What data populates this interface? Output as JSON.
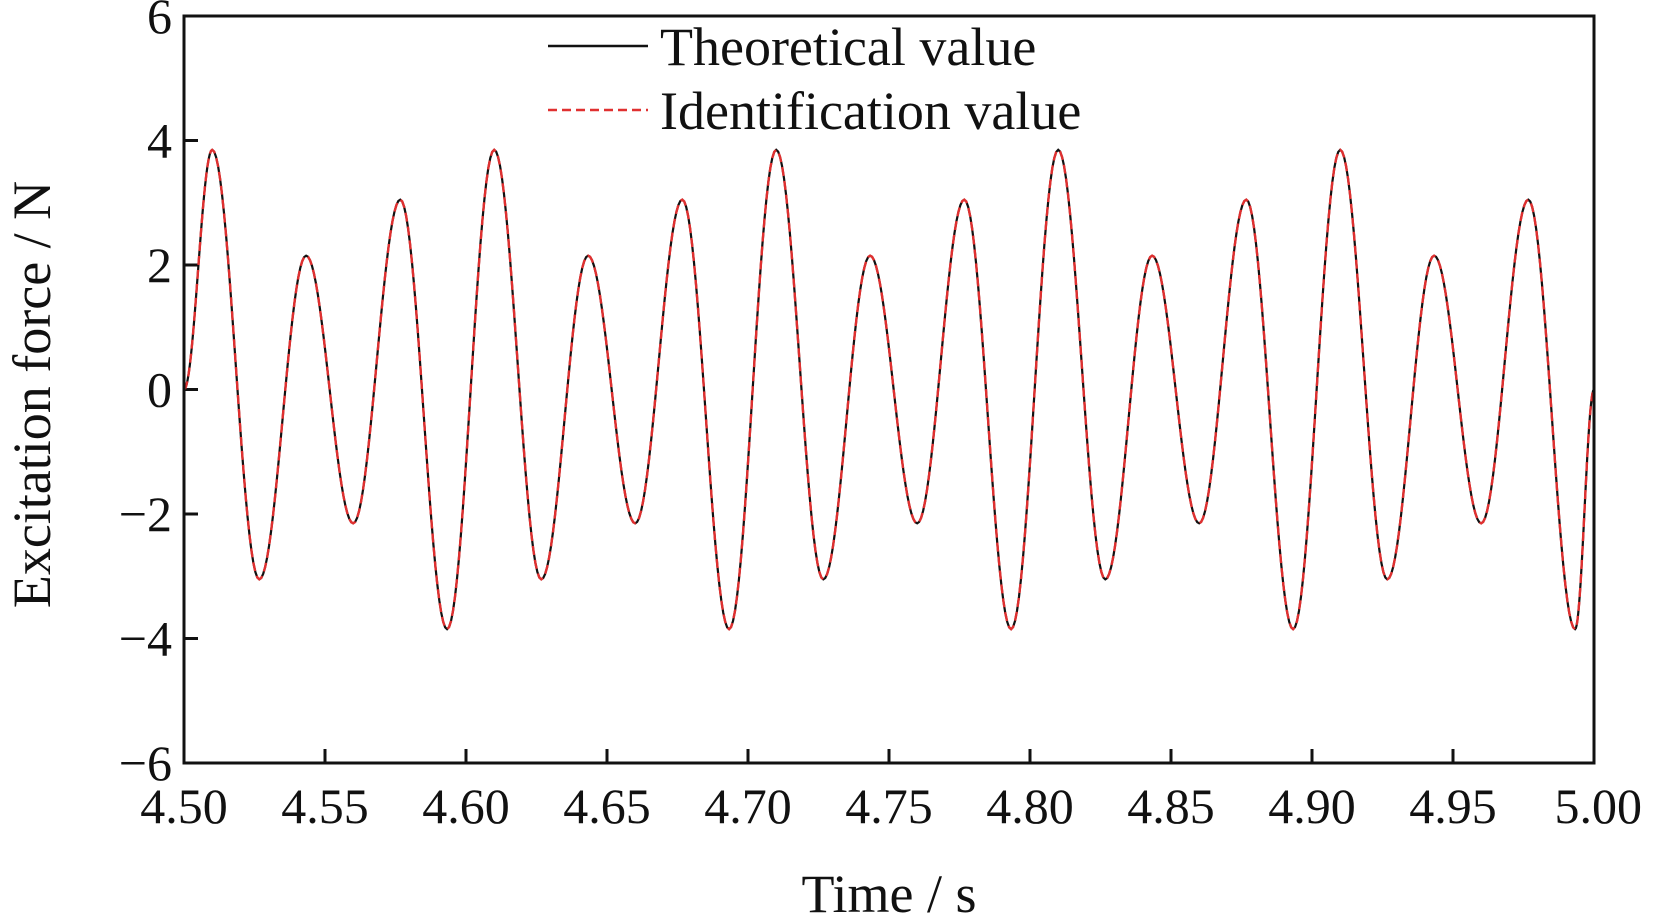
{
  "chart_data": {
    "type": "line",
    "xlabel": "Time / s",
    "ylabel": "Excitation force / N",
    "xlim": [
      4.5,
      5.0
    ],
    "ylim": [
      -6,
      6
    ],
    "x_ticks": [
      "4.50",
      "4.55",
      "4.60",
      "4.65",
      "4.70",
      "4.75",
      "4.80",
      "4.85",
      "4.90",
      "4.95",
      "5.00"
    ],
    "y_ticks": [
      "−6",
      "−4",
      "−2",
      "0",
      "2",
      "4",
      "6"
    ],
    "grid": false,
    "legend_position": "top-center",
    "series": [
      {
        "name": "Theoretical value",
        "color": "#111111",
        "style": "solid",
        "x": [
          4.5,
          4.51,
          4.5267,
          4.5433,
          4.56,
          4.5767,
          4.5933,
          4.61,
          4.6267,
          4.6433,
          4.66,
          4.6767,
          4.6933,
          4.71,
          4.7267,
          4.7433,
          4.76,
          4.7767,
          4.7933,
          4.81,
          4.8267,
          4.8433,
          4.86,
          4.8767,
          4.8933,
          4.91,
          4.9267,
          4.9433,
          4.96,
          4.9767,
          4.9933,
          5.0
        ],
        "y": [
          0,
          3.85,
          -3.05,
          2.15,
          -2.15,
          3.05,
          -3.85,
          3.85,
          -3.05,
          2.15,
          -2.15,
          3.05,
          -3.85,
          3.85,
          -3.05,
          2.15,
          -2.15,
          3.05,
          -3.85,
          3.85,
          -3.05,
          2.15,
          -2.15,
          3.05,
          -3.85,
          3.85,
          -3.05,
          2.15,
          -2.15,
          3.05,
          -3.85,
          0
        ]
      },
      {
        "name": "Identification value",
        "color": "#e03030",
        "style": "dashed",
        "x": [
          4.5,
          4.51,
          4.5267,
          4.5433,
          4.56,
          4.5767,
          4.5933,
          4.61,
          4.6267,
          4.6433,
          4.66,
          4.6767,
          4.6933,
          4.71,
          4.7267,
          4.7433,
          4.76,
          4.7767,
          4.7933,
          4.81,
          4.8267,
          4.8433,
          4.86,
          4.8767,
          4.8933,
          4.91,
          4.9267,
          4.9433,
          4.96,
          4.9767,
          4.9933,
          5.0
        ],
        "y": [
          0,
          3.85,
          -3.05,
          2.15,
          -2.15,
          3.05,
          -3.85,
          3.85,
          -3.05,
          2.15,
          -2.15,
          3.05,
          -3.85,
          3.85,
          -3.05,
          2.15,
          -2.15,
          3.05,
          -3.85,
          3.85,
          -3.05,
          2.15,
          -2.15,
          3.05,
          -3.85,
          3.85,
          -3.05,
          2.15,
          -2.15,
          3.05,
          -3.85,
          0
        ]
      }
    ]
  }
}
